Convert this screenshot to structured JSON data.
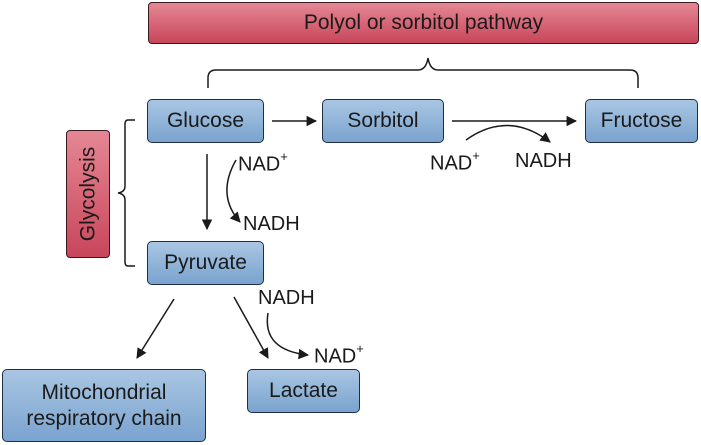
{
  "header": {
    "pathway_title": "Polyol or sorbitol pathway"
  },
  "side": {
    "glycolysis_label": "Glycolysis"
  },
  "nodes": {
    "glucose": "Glucose",
    "sorbitol": "Sorbitol",
    "fructose": "Fructose",
    "pyruvate": "Pyruvate",
    "mito_line1": "Mitochondrial",
    "mito_line2": "respiratory chain",
    "lactate": "Lactate"
  },
  "cofactors": {
    "nad_1": "NAD",
    "nad_1_sup": "+",
    "nadh_1": "NADH",
    "nad_2": "NAD",
    "nad_2_sup": "+",
    "nadh_2": "NADH",
    "nadh_3": "NADH",
    "nad_3": "NAD",
    "nad_3_sup": "+"
  },
  "colors": {
    "blue_box": "#7aa3cf",
    "red_box": "#c8465a",
    "line": "#1a1a1a"
  }
}
